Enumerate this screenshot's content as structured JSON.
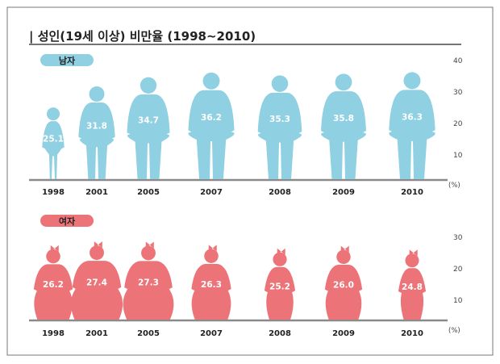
{
  "title": "| 성인(19세 이상) 비만율 (1998~2010)",
  "colors": {
    "male": "#8fd0e2",
    "female": "#ec7378",
    "axis": "#8a8a8a",
    "text": "#333333"
  },
  "chart_data": [
    {
      "type": "bar",
      "label": "남자",
      "categories": [
        "1998",
        "2001",
        "2005",
        "2007",
        "2008",
        "2009",
        "2010"
      ],
      "values": [
        25.1,
        31.8,
        34.7,
        36.2,
        35.3,
        35.8,
        36.3
      ],
      "value_labels": [
        "25.1",
        "31.8",
        "34.7",
        "36.2",
        "35.3",
        "35.8",
        "36.3"
      ],
      "yticks": [
        "10",
        "20",
        "30",
        "40"
      ],
      "unit": "(%)",
      "ylim": [
        0,
        40
      ]
    },
    {
      "type": "bar",
      "label": "여자",
      "categories": [
        "1998",
        "2001",
        "2005",
        "2007",
        "2008",
        "2009",
        "2010"
      ],
      "values": [
        26.2,
        27.4,
        27.3,
        26.3,
        25.2,
        26.0,
        24.8
      ],
      "value_labels": [
        "26.2",
        "27.4",
        "27.3",
        "26.3",
        "25.2",
        "26.0",
        "24.8"
      ],
      "yticks": [
        "10",
        "20",
        "30"
      ],
      "unit": "(%)",
      "ylim": [
        0,
        30
      ]
    }
  ]
}
